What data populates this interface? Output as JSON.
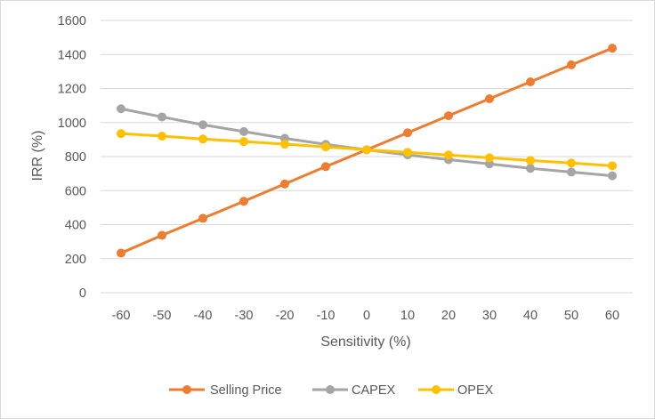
{
  "chart_data": {
    "type": "line",
    "title": "",
    "xlabel": "Sensitivity (%)",
    "ylabel": "IRR (%)",
    "x": [
      -60,
      -50,
      -40,
      -30,
      -20,
      -10,
      0,
      10,
      20,
      30,
      40,
      50,
      60
    ],
    "ylim": [
      0,
      1600
    ],
    "yticks": [
      0,
      200,
      400,
      600,
      800,
      1000,
      1200,
      1400,
      1600
    ],
    "grid": true,
    "legend_position": "bottom",
    "series": [
      {
        "name": "Selling Price",
        "color": "#ED7D31",
        "values": [
          233,
          337,
          437,
          537,
          639,
          741,
          840,
          940,
          1040,
          1140,
          1239,
          1339,
          1437
        ]
      },
      {
        "name": "CAPEX",
        "color": "#A5A5A5",
        "values": [
          1081,
          1033,
          987,
          947,
          907,
          872,
          840,
          810,
          782,
          757,
          731,
          709,
          687
        ]
      },
      {
        "name": "OPEX",
        "color": "#FFC000",
        "values": [
          935,
          920,
          903,
          888,
          873,
          857,
          840,
          825,
          809,
          793,
          777,
          762,
          746
        ]
      }
    ]
  }
}
